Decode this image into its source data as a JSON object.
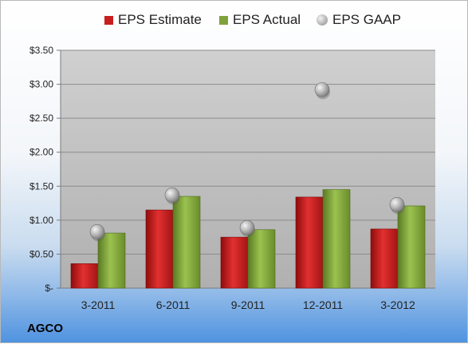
{
  "company": "AGCO",
  "chart_data": {
    "type": "bar",
    "categories": [
      "3-2011",
      "6-2011",
      "9-2011",
      "12-2011",
      "3-2012"
    ],
    "series": [
      {
        "name": "EPS Estimate",
        "values": [
          0.36,
          1.15,
          0.75,
          1.34,
          0.87
        ],
        "color": "#c81e1e",
        "kind": "bar"
      },
      {
        "name": "EPS Actual",
        "values": [
          0.81,
          1.35,
          0.86,
          1.45,
          1.21
        ],
        "color": "#7fa23c",
        "kind": "bar"
      },
      {
        "name": "EPS GAAP",
        "values": [
          0.83,
          1.37,
          0.89,
          2.92,
          1.23
        ],
        "color": "#a9a9a9",
        "kind": "marker"
      }
    ],
    "ylim": [
      0,
      3.5
    ],
    "yticks": [
      0,
      0.5,
      1.0,
      1.5,
      2.0,
      2.5,
      3.0,
      3.5
    ],
    "ytick_labels": [
      "$-",
      "$0.50",
      "$1.00",
      "$1.50",
      "$2.00",
      "$2.50",
      "$3.00",
      "$3.50"
    ],
    "grid": true,
    "legend_position": "top"
  }
}
